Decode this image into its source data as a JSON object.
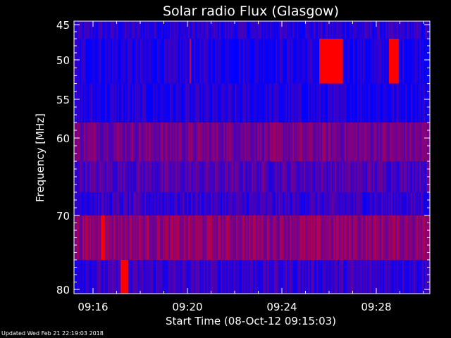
{
  "chart_data": {
    "type": "heatmap",
    "title": "Solar radio Flux (Glasgow)",
    "xlabel": "Start Time (08-Oct-12 09:15:03)",
    "ylabel": "Frequency [MHz]",
    "x_range_minutes": [
      "09:15:03",
      "09:31:30"
    ],
    "xticks": [
      "09:16",
      "09:20",
      "09:24",
      "09:28"
    ],
    "ylim": [
      45,
      80
    ],
    "yticks": [
      "45",
      "50",
      "55",
      "60",
      "70",
      "80"
    ],
    "y_scale": "log",
    "colormap": [
      "#0000ff",
      "#ff0000"
    ],
    "frequency_bands": [
      {
        "from": 44,
        "to": 47,
        "intensity": 0.15
      },
      {
        "from": 47,
        "to": 53,
        "intensity": 0.1
      },
      {
        "from": 53,
        "to": 58,
        "intensity": 0.1
      },
      {
        "from": 58,
        "to": 63,
        "intensity": 0.45
      },
      {
        "from": 63,
        "to": 67,
        "intensity": 0.3
      },
      {
        "from": 67,
        "to": 70,
        "intensity": 0.2
      },
      {
        "from": 70,
        "to": 76,
        "intensity": 0.55
      },
      {
        "from": 76,
        "to": 81,
        "intensity": 0.2
      }
    ],
    "bursts": [
      {
        "start": "09:25:35",
        "end": "09:26:35",
        "f_from": 47,
        "f_to": 53,
        "intensity": 1.0
      },
      {
        "start": "09:28:32",
        "end": "09:28:57",
        "f_from": 47,
        "f_to": 53,
        "intensity": 1.0
      },
      {
        "start": "09:20:05",
        "end": "09:20:08",
        "f_from": 47,
        "f_to": 53,
        "intensity": 0.9
      },
      {
        "start": "09:16:20",
        "end": "09:16:30",
        "f_from": 70,
        "f_to": 76,
        "intensity": 1.0
      },
      {
        "start": "09:17:10",
        "end": "09:17:30",
        "f_from": 76,
        "f_to": 81,
        "intensity": 1.0
      }
    ]
  },
  "footer": "Updated Wed Feb 21 22:19:03 2018"
}
